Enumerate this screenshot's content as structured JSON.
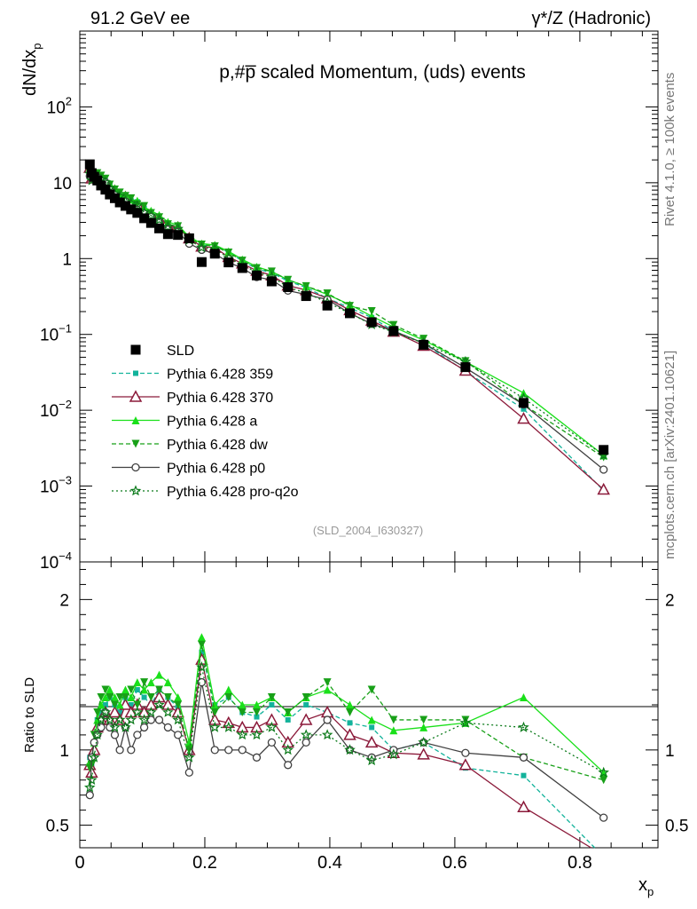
{
  "header": {
    "left": "91.2 GeV ee",
    "right": "γ*/Z (Hadronic)",
    "side_top": "Rivet 4.1.0, ≥ 100k events",
    "side_bottom": "mcplots.cern.ch [arXiv:2401.10621]"
  },
  "chart_data": {
    "type": "line",
    "title": "p,#p̅ scaled Momentum, (uds) events",
    "analysis_id": "(SLD_2004_I630327)",
    "main": {
      "ylabel": "dN/dx",
      "ylabel_sub": "p",
      "yscale": "log",
      "ylim": [
        0.0001,
        1000
      ],
      "yticks": [
        {
          "v": 0.001,
          "base": "10",
          "exp": "−3"
        },
        {
          "v": 0.01,
          "base": "10",
          "exp": "−2"
        },
        {
          "v": 0.1,
          "base": "10",
          "exp": "−1"
        },
        {
          "v": 1,
          "base": "1",
          "exp": ""
        },
        {
          "v": 10,
          "base": "10",
          "exp": ""
        },
        {
          "v": 100,
          "base": "10",
          "exp": "2"
        },
        {
          "v": 0.0001,
          "base": "10",
          "exp": "−4"
        }
      ]
    },
    "ratio": {
      "ylabel": "Ratio to SLD",
      "ylim": [
        0.35,
        2.25
      ],
      "yticks": [
        "0.5",
        "1",
        "2"
      ]
    },
    "xlabel": "x",
    "xlabel_sub": "p",
    "xlim": [
      0,
      0.925
    ],
    "xticks": [
      "0",
      "0.2",
      "0.4",
      "0.6",
      "0.8"
    ],
    "x": [
      0.016,
      0.019,
      0.023,
      0.028,
      0.034,
      0.041,
      0.048,
      0.056,
      0.064,
      0.073,
      0.082,
      0.092,
      0.103,
      0.114,
      0.127,
      0.141,
      0.157,
      0.175,
      0.195,
      0.216,
      0.238,
      0.26,
      0.283,
      0.307,
      0.333,
      0.362,
      0.396,
      0.432,
      0.467,
      0.502,
      0.55,
      0.617,
      0.71,
      0.838
    ],
    "data": {
      "name": "SLD",
      "values": [
        17.5,
        13.4,
        12.0,
        10.7,
        9.2,
        8.1,
        7.0,
        6.25,
        5.5,
        4.95,
        4.45,
        4.0,
        3.4,
        2.95,
        2.5,
        2.1,
        2.05,
        1.85,
        0.9,
        1.16,
        0.89,
        0.75,
        0.6,
        0.5,
        0.42,
        0.32,
        0.24,
        0.19,
        0.145,
        0.111,
        0.073,
        0.037,
        0.0125,
        0.003
      ]
    },
    "series": [
      {
        "name": "Pythia 6.428 359",
        "color": "#13b39b",
        "dash": "5,3",
        "marker": "square-small",
        "ratio": [
          0.95,
          0.9,
          1.05,
          1.2,
          1.25,
          1.3,
          1.35,
          1.3,
          1.25,
          1.35,
          1.3,
          1.4,
          1.35,
          1.3,
          1.4,
          1.35,
          1.28,
          1.0,
          1.65,
          1.3,
          1.35,
          1.25,
          1.22,
          1.3,
          1.2,
          1.3,
          1.25,
          1.18,
          1.15,
          1.0,
          1.05,
          0.88,
          0.83,
          0.29
        ]
      },
      {
        "name": "Pythia 6.428 370",
        "color": "#8b1a3a",
        "dash": "",
        "marker": "triangle-open",
        "ratio": [
          0.9,
          0.85,
          1.0,
          1.15,
          1.2,
          1.25,
          1.2,
          1.25,
          1.2,
          1.3,
          1.25,
          1.3,
          1.25,
          1.3,
          1.35,
          1.3,
          1.25,
          1.0,
          1.6,
          1.2,
          1.18,
          1.15,
          1.15,
          1.2,
          1.05,
          1.2,
          1.25,
          1.1,
          1.05,
          0.98,
          0.97,
          0.9,
          0.62,
          0.3
        ]
      },
      {
        "name": "Pythia 6.428 a",
        "color": "#1ae01a",
        "dash": "",
        "marker": "triangle-filled",
        "ratio": [
          0.92,
          0.95,
          1.05,
          1.2,
          1.3,
          1.35,
          1.4,
          1.35,
          1.3,
          1.4,
          1.35,
          1.45,
          1.4,
          1.45,
          1.5,
          1.45,
          1.35,
          1.05,
          1.75,
          1.3,
          1.4,
          1.3,
          1.3,
          1.35,
          1.25,
          1.35,
          1.4,
          1.3,
          1.2,
          1.13,
          1.15,
          1.18,
          1.35,
          0.85
        ]
      },
      {
        "name": "Pythia 6.428 dw",
        "color": "#18a018",
        "dash": "5,3",
        "marker": "triangle-down-filled",
        "ratio": [
          0.88,
          0.9,
          1.1,
          1.25,
          1.35,
          1.4,
          1.35,
          1.3,
          1.35,
          1.35,
          1.4,
          1.3,
          1.45,
          1.35,
          1.4,
          1.35,
          1.3,
          1.0,
          1.7,
          1.25,
          1.35,
          1.25,
          1.25,
          1.35,
          1.25,
          1.35,
          1.45,
          1.25,
          1.4,
          1.2,
          1.2,
          1.2,
          0.95,
          0.8
        ]
      },
      {
        "name": "Pythia 6.428 p0",
        "color": "#404040",
        "dash": "",
        "marker": "circle-open",
        "ratio": [
          0.7,
          0.95,
          1.05,
          1.1,
          1.15,
          1.25,
          1.15,
          1.1,
          1.0,
          1.15,
          1.0,
          1.1,
          1.15,
          1.2,
          1.2,
          1.15,
          1.1,
          0.85,
          1.45,
          1.0,
          1.0,
          1.0,
          0.95,
          1.05,
          0.9,
          1.05,
          1.2,
          1.0,
          0.95,
          1.0,
          1.05,
          0.98,
          0.95,
          0.55
        ]
      },
      {
        "name": "Pythia 6.428 pro-q2o",
        "color": "#0b7a1a",
        "dash": "2,3",
        "marker": "star-open",
        "ratio": [
          0.75,
          0.8,
          0.95,
          1.1,
          1.2,
          1.25,
          1.2,
          1.15,
          1.2,
          1.15,
          1.2,
          1.25,
          1.2,
          1.25,
          1.3,
          1.25,
          1.2,
          0.95,
          1.55,
          1.15,
          1.15,
          1.1,
          1.1,
          1.15,
          1.0,
          1.1,
          1.1,
          1.0,
          0.93,
          0.97,
          1.05,
          1.18,
          1.15,
          0.85
        ]
      }
    ]
  }
}
